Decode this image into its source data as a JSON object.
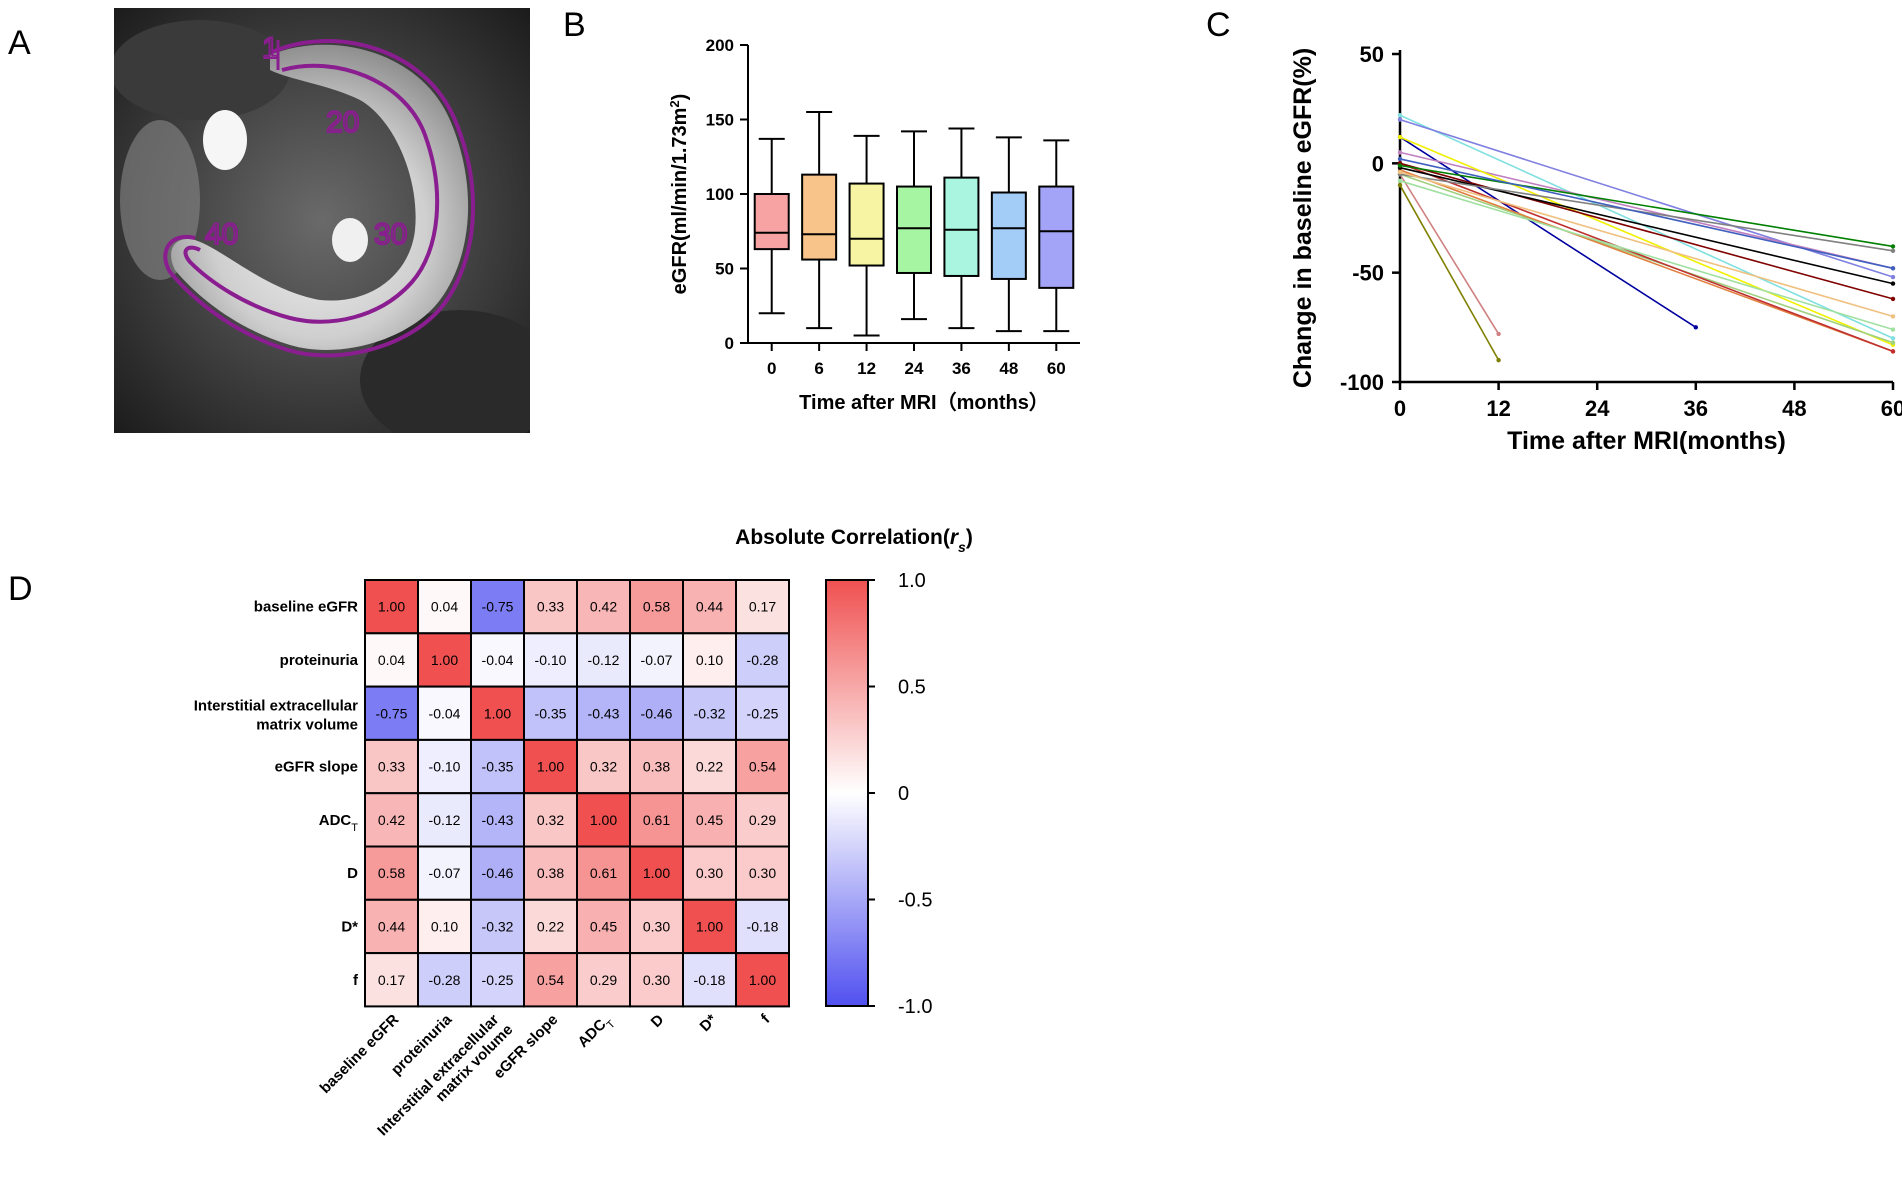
{
  "panels": {
    "a": {
      "label": "A",
      "roi_labels": [
        "1",
        "20",
        "30",
        "40"
      ]
    },
    "b": {
      "label": "B"
    },
    "c": {
      "label": "C"
    },
    "d": {
      "label": "D"
    }
  },
  "chart_data": [
    {
      "id": "boxplot",
      "type": "box",
      "title": "",
      "xlabel": "Time after MRI（months）",
      "ylabel": "eGFR(ml/min/1.73m",
      "ylabel_sup": "2",
      "ylabel_close": ")",
      "ylim": [
        0,
        200
      ],
      "yticks": [
        0,
        50,
        100,
        150,
        200
      ],
      "categories": [
        "0",
        "6",
        "12",
        "24",
        "36",
        "48",
        "60"
      ],
      "colors": [
        "#f7a3a3",
        "#f9c489",
        "#f7f5a3",
        "#a6f5a3",
        "#a9f5df",
        "#a3cdf7",
        "#a3a3f7"
      ],
      "boxes": [
        {
          "min": 20,
          "q1": 63,
          "median": 74,
          "q3": 100,
          "max": 137
        },
        {
          "min": 10,
          "q1": 56,
          "median": 73,
          "q3": 113,
          "max": 155
        },
        {
          "min": 5,
          "q1": 52,
          "median": 70,
          "q3": 107,
          "max": 139
        },
        {
          "min": 16,
          "q1": 47,
          "median": 77,
          "q3": 105,
          "max": 142
        },
        {
          "min": 10,
          "q1": 45,
          "median": 76,
          "q3": 111,
          "max": 144
        },
        {
          "min": 8,
          "q1": 43,
          "median": 77,
          "q3": 101,
          "max": 138
        },
        {
          "min": 8,
          "q1": 37,
          "median": 75,
          "q3": 105,
          "max": 136
        }
      ]
    },
    {
      "id": "trajectories",
      "type": "line",
      "title": "",
      "xlabel": "Time after MRI(months)",
      "ylabel": "Change in baseline eGFR(%)",
      "xlim": [
        0,
        60
      ],
      "ylim": [
        -100,
        50
      ],
      "xticks": [
        0,
        12,
        24,
        36,
        48,
        60
      ],
      "yticks": [
        -100,
        -50,
        0,
        50
      ],
      "series": [
        {
          "color": "#0000a0",
          "x": [
            0,
            36
          ],
          "y": [
            12,
            -75
          ]
        },
        {
          "color": "#d08080",
          "x": [
            0,
            12
          ],
          "y": [
            -5,
            -78
          ]
        },
        {
          "color": "#808000",
          "x": [
            0,
            12
          ],
          "y": [
            -10,
            -90
          ]
        },
        {
          "color": "#80e0e0",
          "x": [
            0,
            60
          ],
          "y": [
            22,
            -80
          ]
        },
        {
          "color": "#8080e0",
          "x": [
            0,
            60
          ],
          "y": [
            20,
            -52
          ]
        },
        {
          "color": "#c080c0",
          "x": [
            0,
            60
          ],
          "y": [
            5,
            -48
          ]
        },
        {
          "color": "#f0f000",
          "x": [
            0,
            60
          ],
          "y": [
            12,
            -83
          ]
        },
        {
          "color": "#a0d080",
          "x": [
            0,
            60
          ],
          "y": [
            -5,
            -82
          ]
        },
        {
          "color": "#e08040",
          "x": [
            0,
            60
          ],
          "y": [
            -3,
            -86
          ]
        },
        {
          "color": "#c03030",
          "x": [
            0,
            60
          ],
          "y": [
            0,
            -86
          ]
        },
        {
          "color": "#800000",
          "x": [
            0,
            60
          ],
          "y": [
            0,
            -62
          ]
        },
        {
          "color": "#000000",
          "x": [
            0,
            60
          ],
          "y": [
            -2,
            -55
          ]
        },
        {
          "color": "#008000",
          "x": [
            0,
            60
          ],
          "y": [
            -1,
            -38
          ]
        },
        {
          "color": "#808080",
          "x": [
            0,
            60
          ],
          "y": [
            -5,
            -40
          ]
        },
        {
          "color": "#a0e0a0",
          "x": [
            0,
            60
          ],
          "y": [
            -8,
            -76
          ]
        },
        {
          "color": "#f0c080",
          "x": [
            0,
            60
          ],
          "y": [
            -4,
            -70
          ]
        },
        {
          "color": "#4060c0",
          "x": [
            0,
            60
          ],
          "y": [
            2,
            -48
          ]
        }
      ]
    },
    {
      "id": "heatmap",
      "type": "heatmap",
      "title": "Absolute Correlation(",
      "title_var": "r",
      "title_sub": "s",
      "title_close": ")",
      "row_labels": [
        "baseline eGFR",
        "proteinuria",
        "Interstitial extracellular",
        "eGFR slope",
        "ADC",
        "D",
        "D*",
        "f"
      ],
      "row_label_line2": {
        "2": "matrix volume"
      },
      "col_labels": [
        "baseline eGFR",
        "proteinuria",
        "Interstitial extracellular",
        "eGFR slope",
        "ADC",
        "D",
        "D*",
        "f"
      ],
      "col_label_line2": {
        "2": "matrix volume"
      },
      "adc_subscript": "T",
      "matrix": [
        [
          "1.00",
          "0.04",
          "-0.75",
          "0.33",
          "0.42",
          "0.58",
          "0.44",
          "0.17"
        ],
        [
          "0.04",
          "1.00",
          "-0.04",
          "-0.10",
          "-0.12",
          "-0.07",
          "0.10",
          "-0.28"
        ],
        [
          "-0.75",
          "-0.04",
          "1.00",
          "-0.35",
          "-0.43",
          "-0.46",
          "-0.32",
          "-0.25"
        ],
        [
          "0.33",
          "-0.10",
          "-0.35",
          "1.00",
          "0.32",
          "0.38",
          "0.22",
          "0.54"
        ],
        [
          "0.42",
          "-0.12",
          "-0.43",
          "0.32",
          "1.00",
          "0.61",
          "0.45",
          "0.29"
        ],
        [
          "0.58",
          "-0.07",
          "-0.46",
          "0.38",
          "0.61",
          "1.00",
          "0.30",
          "0.30"
        ],
        [
          "0.44",
          "0.10",
          "-0.32",
          "0.22",
          "0.45",
          "0.30",
          "1.00",
          "-0.18"
        ],
        [
          "0.17",
          "-0.28",
          "-0.25",
          "0.54",
          "0.29",
          "0.30",
          "-0.18",
          "1.00"
        ]
      ],
      "colorbar": {
        "ticks": [
          "1.0",
          "0.5",
          "0",
          "-0.5",
          "-1.0"
        ],
        "min": -1,
        "max": 1,
        "pos_color": "#f05050",
        "neg_color": "#5050f0",
        "mid_color": "#ffffff"
      }
    }
  ]
}
